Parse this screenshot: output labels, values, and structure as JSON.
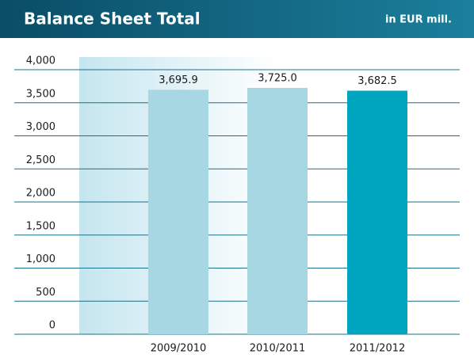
{
  "chart_data": {
    "type": "bar",
    "title": "Balance Sheet Total",
    "subtitle": "in EUR mill.",
    "categories": [
      "2009/2010",
      "2010/2011",
      "2011/2012"
    ],
    "values": [
      3695.9,
      3725.0,
      3682.5
    ],
    "value_labels": [
      "3,695.9",
      "3,725.0",
      "3,682.5"
    ],
    "colors": [
      "#a6d7e3",
      "#a6d7e3",
      "#00a5c0"
    ],
    "ylim": [
      0,
      4000
    ],
    "yticks": [
      0,
      500,
      {
        "value": 1000,
        "label": "1,000"
      },
      {
        "value": 1500,
        "label": "1,500"
      },
      {
        "value": 2000,
        "label": "2,000"
      },
      {
        "value": 2500,
        "label": "2,500"
      },
      {
        "value": 3000,
        "label": "3,000"
      },
      {
        "value": 3500,
        "label": "3,500"
      },
      {
        "value": 4000,
        "label": "4,000"
      }
    ],
    "grid": true
  }
}
